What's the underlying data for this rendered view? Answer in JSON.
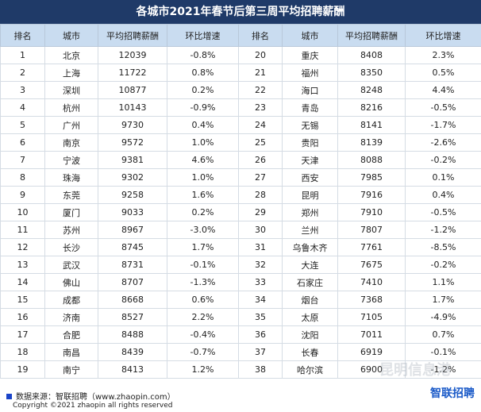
{
  "title": "各城市2021年春节后第三周平均招聘薪酬",
  "table": {
    "header": [
      "排名",
      "城市",
      "平均招聘薪酬",
      "环比增速",
      "排名",
      "城市",
      "平均招聘薪酬",
      "环比增速"
    ],
    "rows": [
      [
        1,
        "北京",
        12039,
        "-0.8%",
        20,
        "重庆",
        8408,
        "2.3%"
      ],
      [
        2,
        "上海",
        11722,
        "0.8%",
        21,
        "福州",
        8350,
        "0.5%"
      ],
      [
        3,
        "深圳",
        10877,
        "0.2%",
        22,
        "海口",
        8248,
        "4.4%"
      ],
      [
        4,
        "杭州",
        10143,
        "-0.9%",
        23,
        "青岛",
        8216,
        "-0.5%"
      ],
      [
        5,
        "广州",
        9730,
        "0.4%",
        24,
        "无锡",
        8141,
        "-1.7%"
      ],
      [
        6,
        "南京",
        9572,
        "1.0%",
        25,
        "贵阳",
        8139,
        "-2.6%"
      ],
      [
        7,
        "宁波",
        9381,
        "4.6%",
        26,
        "天津",
        8088,
        "-0.2%"
      ],
      [
        8,
        "珠海",
        9302,
        "1.0%",
        27,
        "西安",
        7985,
        "0.1%"
      ],
      [
        9,
        "东莞",
        9258,
        "1.6%",
        28,
        "昆明",
        7916,
        "0.4%"
      ],
      [
        10,
        "厦门",
        9033,
        "0.2%",
        29,
        "郑州",
        7910,
        "-0.5%"
      ],
      [
        11,
        "苏州",
        8967,
        "-3.0%",
        30,
        "兰州",
        7807,
        "-1.2%"
      ],
      [
        12,
        "长沙",
        8745,
        "1.7%",
        31,
        "乌鲁木齐",
        7761,
        "-8.5%"
      ],
      [
        13,
        "武汉",
        8731,
        "-0.1%",
        32,
        "大连",
        7675,
        "-0.2%"
      ],
      [
        14,
        "佛山",
        8707,
        "-1.3%",
        33,
        "石家庄",
        7410,
        "1.1%"
      ],
      [
        15,
        "成都",
        8668,
        "0.6%",
        34,
        "烟台",
        7368,
        "1.7%"
      ],
      [
        16,
        "济南",
        8527,
        "2.2%",
        35,
        "太原",
        7105,
        "-4.9%"
      ],
      [
        17,
        "合肥",
        8488,
        "-0.4%",
        36,
        "沈阳",
        7011,
        "0.7%"
      ],
      [
        18,
        "南昌",
        8439,
        "-0.7%",
        37,
        "长春",
        6919,
        "-0.1%"
      ],
      [
        19,
        "南宁",
        8413,
        "1.2%",
        38,
        "哈尔滨",
        6900,
        "-1.2%"
      ]
    ]
  },
  "footer": {
    "source": "数据来源：智联招聘（www.zhaopin.com）",
    "copyright": "Copyright ©2021 zhaopin all rights reserved",
    "logo": "智联招聘",
    "watermark": "昆明信息港"
  }
}
